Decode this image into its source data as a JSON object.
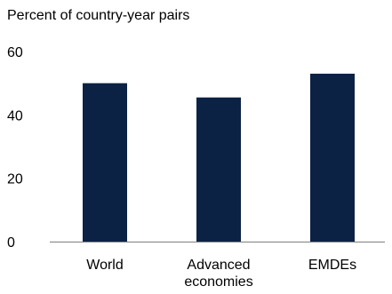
{
  "chart_data": {
    "type": "bar",
    "title": "",
    "ylabel": "Percent of country-year pairs",
    "xlabel": "",
    "categories": [
      [
        "World"
      ],
      [
        "Advanced",
        "economies"
      ],
      [
        "EMDEs"
      ]
    ],
    "values": [
      50,
      45.5,
      53
    ],
    "ylim": [
      0,
      60
    ],
    "yticks": [
      0,
      20,
      40,
      60
    ],
    "grid": false,
    "legend": "none",
    "bar_color": "#0b2244",
    "axis_color": "#7f7f7f"
  }
}
